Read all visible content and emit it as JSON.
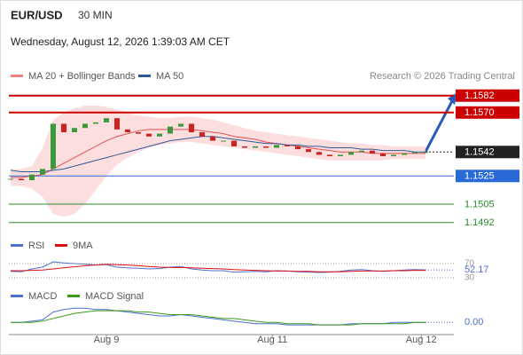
{
  "header": {
    "symbol": "EUR/USD",
    "interval": "30 MIN",
    "datetime": "Wednesday, August 12, 2026 1:39:03 AM CET",
    "credit": "Research © 2026 Trading Central"
  },
  "chart_data": [
    {
      "type": "candlestick",
      "legend": [
        {
          "name": "MA 20 + Bollinger Bands",
          "color": "#f08080"
        },
        {
          "name": "MA 50",
          "color": "#2e5a96"
        }
      ],
      "ylim": [
        1.1483,
        1.159
      ],
      "xlim": [
        0,
        39
      ],
      "xticks": [
        {
          "value": 9,
          "label": "Aug 9"
        },
        {
          "value": 24.6,
          "label": "Aug 11"
        },
        {
          "value": 38.6,
          "label": "Aug 12"
        }
      ],
      "close": [
        1.1523,
        1.1522,
        1.1526,
        1.153,
        1.1562,
        1.1556,
        1.1559,
        1.1562,
        1.1563,
        1.1566,
        1.1558,
        1.1556,
        1.1555,
        1.1553,
        1.1555,
        1.156,
        1.1562,
        1.1556,
        1.1553,
        1.155,
        1.155,
        1.1546,
        1.1545,
        1.1546,
        1.1545,
        1.1547,
        1.1546,
        1.1544,
        1.1542,
        1.154,
        1.1539,
        1.154,
        1.1542,
        1.1543,
        1.1541,
        1.1539,
        1.154,
        1.1541,
        1.1542,
        1.1542
      ],
      "series": [
        {
          "name": "MA 20",
          "color": "#e05050",
          "values": [
            1.1524,
            1.1524,
            1.1525,
            1.1526,
            1.153,
            1.1534,
            1.1538,
            1.1542,
            1.1546,
            1.155,
            1.1553,
            1.1555,
            1.1557,
            1.1558,
            1.1558,
            1.1558,
            1.1558,
            1.1558,
            1.1557,
            1.1556,
            1.1555,
            1.1553,
            1.1552,
            1.1551,
            1.1549,
            1.1548,
            1.1547,
            1.1546,
            1.1545,
            1.1544,
            1.1543,
            1.1542,
            1.1542,
            1.1542,
            1.1541,
            1.1541,
            1.1541,
            1.1541,
            1.1541,
            1.1541
          ]
        },
        {
          "name": "MA 50",
          "color": "#2e5a96",
          "values": [
            1.1529,
            1.1528,
            1.1528,
            1.1528,
            1.1529,
            1.153,
            1.1532,
            1.1534,
            1.1536,
            1.1538,
            1.154,
            1.1542,
            1.1544,
            1.1546,
            1.1548,
            1.155,
            1.1551,
            1.1552,
            1.1553,
            1.1553,
            1.1552,
            1.1551,
            1.155,
            1.1549,
            1.1548,
            1.1548,
            1.1547,
            1.1547,
            1.1546,
            1.1546,
            1.1545,
            1.1545,
            1.1545,
            1.1544,
            1.1544,
            1.1543,
            1.1543,
            1.1543,
            1.1542,
            1.1542
          ]
        },
        {
          "name": "Upper",
          "color": "#fbd0d0",
          "values": [
            1.153,
            1.153,
            1.1532,
            1.1545,
            1.1565,
            1.157,
            1.1573,
            1.1575,
            1.1575,
            1.1574,
            1.1572,
            1.157,
            1.1568,
            1.1567,
            1.1566,
            1.1566,
            1.1567,
            1.1567,
            1.1566,
            1.1565,
            1.1563,
            1.1561,
            1.1559,
            1.1557,
            1.1556,
            1.1555,
            1.1554,
            1.1553,
            1.1552,
            1.1551,
            1.155,
            1.1549,
            1.1548,
            1.1548,
            1.1547,
            1.1547,
            1.1546,
            1.1546,
            1.1546,
            1.1546
          ]
        },
        {
          "name": "Lower",
          "color": "#fbd0d0",
          "values": [
            1.1518,
            1.1518,
            1.1516,
            1.151,
            1.1498,
            1.1496,
            1.1498,
            1.1505,
            1.1515,
            1.1525,
            1.1533,
            1.1538,
            1.1542,
            1.1545,
            1.1547,
            1.1548,
            1.1549,
            1.1549,
            1.1548,
            1.1547,
            1.1546,
            1.1545,
            1.1544,
            1.1543,
            1.1542,
            1.1541,
            1.154,
            1.1539,
            1.1538,
            1.1537,
            1.1536,
            1.1536,
            1.1536,
            1.1536,
            1.1536,
            1.1536,
            1.1537,
            1.1537,
            1.1537,
            1.1537
          ]
        }
      ],
      "levels": [
        {
          "value": 1.1582,
          "label": "1.1582",
          "color": "#cc0000"
        },
        {
          "value": 1.157,
          "label": "1.1570",
          "color": "#cc0000"
        },
        {
          "value": 1.1542,
          "label": "1.1542",
          "color": "#222222"
        },
        {
          "value": 1.1525,
          "label": "1.1525",
          "color": "#2a6ad8"
        },
        {
          "value": 1.1505,
          "label": "1.1505",
          "color": "#2a8a2a"
        },
        {
          "value": 1.1492,
          "label": "1.1492",
          "color": "#2a8a2a"
        }
      ]
    },
    {
      "type": "line",
      "ylim": [
        22.5,
        92.5
      ],
      "yticks": [
        70,
        30
      ],
      "current": 52.17,
      "series": [
        {
          "name": "RSI",
          "color": "#4f6fd0",
          "values": [
            48,
            47,
            55,
            60,
            75,
            72,
            70,
            68,
            66,
            67,
            60,
            58,
            57,
            55,
            56,
            60,
            62,
            55,
            52,
            50,
            50,
            46,
            47,
            48,
            47,
            50,
            49,
            47,
            46,
            45,
            46,
            48,
            52,
            53,
            50,
            48,
            50,
            52,
            53,
            52.17
          ]
        },
        {
          "name": "9MA",
          "color": "#dd1111",
          "values": [
            50,
            50,
            51,
            52,
            55,
            58,
            61,
            64,
            66,
            68,
            67,
            66,
            64,
            62,
            60,
            59,
            59,
            58,
            57,
            56,
            55,
            53,
            52,
            51,
            50,
            49,
            49,
            48,
            48,
            47,
            47,
            47,
            48,
            49,
            49,
            49,
            50,
            50,
            51,
            51
          ]
        }
      ]
    },
    {
      "type": "line",
      "ylim": [
        -0.0006,
        0.0016
      ],
      "current": {
        "value": 0,
        "label": "0.00"
      },
      "series": [
        {
          "name": "MACD",
          "color": "#4f6fd0",
          "values": [
            0,
            0,
            0.0001,
            0.0002,
            0.0008,
            0.001,
            0.0011,
            0.0011,
            0.001,
            0.001,
            0.0009,
            0.0008,
            0.0007,
            0.0006,
            0.0005,
            0.0005,
            0.0006,
            0.0005,
            0.0004,
            0.0003,
            0.0002,
            0.0001,
            0,
            -0.0001,
            -0.0001,
            -0.0001,
            -0.0002,
            -0.0002,
            -0.0002,
            -0.0002,
            -0.0002,
            -0.0002,
            -0.0001,
            -0.0001,
            -0.0001,
            -0.0001,
            0,
            0,
            0,
            0
          ]
        },
        {
          "name": "MACD Signal",
          "color": "#3a9a1a",
          "values": [
            0,
            0,
            0,
            0.0001,
            0.0003,
            0.0005,
            0.0007,
            0.0008,
            0.0009,
            0.0009,
            0.0009,
            0.0009,
            0.0008,
            0.0008,
            0.0007,
            0.0006,
            0.0006,
            0.0006,
            0.0005,
            0.0004,
            0.0003,
            0.0003,
            0.0002,
            0.0001,
            0,
            0,
            -0.0001,
            -0.0001,
            -0.0001,
            -0.0002,
            -0.0002,
            -0.0002,
            -0.0002,
            -0.0001,
            -0.0001,
            -0.0001,
            -0.0001,
            -0.0001,
            0,
            0
          ]
        }
      ]
    }
  ]
}
